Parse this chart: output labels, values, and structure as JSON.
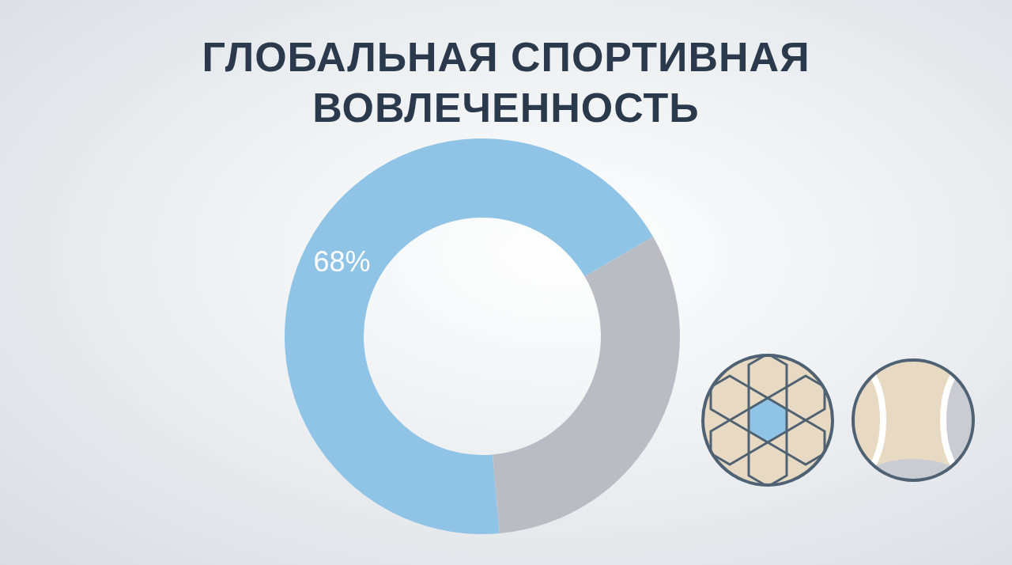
{
  "chart_data": {
    "type": "donut",
    "title": "ГЛОБАЛЬНАЯ СПОРТИВНАЯ ВОВЛЕЧЕННОСТЬ",
    "categories": [
      null,
      null
    ],
    "values": [
      68,
      32
    ],
    "colors": [
      "#8fc4e6",
      "#b9bcc3"
    ],
    "value_labels": [
      "68%",
      null
    ],
    "legend": false
  }
}
